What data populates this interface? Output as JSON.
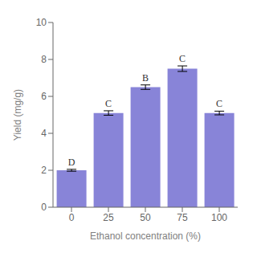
{
  "chart_data": {
    "type": "bar",
    "xlabel": "Ethanol concentration (%)",
    "ylabel": "Yield (mg/g)",
    "categories": [
      "0",
      "25",
      "50",
      "75",
      "100"
    ],
    "values": [
      2.0,
      5.1,
      6.5,
      7.5,
      5.1
    ],
    "errors": [
      0.05,
      0.12,
      0.12,
      0.15,
      0.1
    ],
    "labels": [
      "D",
      "C",
      "B",
      "C",
      "C"
    ],
    "ylim": [
      0,
      10
    ],
    "yticks": [
      0,
      2,
      4,
      6,
      8,
      10
    ],
    "grid": false,
    "color": "#8884d8"
  }
}
